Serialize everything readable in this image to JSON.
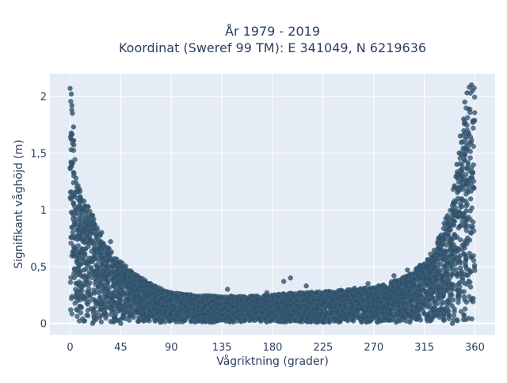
{
  "chart_data": {
    "type": "scatter",
    "title_line1": "År 1979 - 2019",
    "title_line2": "Koordinat (Sweref 99 TM): E 341049, N 6219636",
    "xlabel": "Vågriktning (grader)",
    "ylabel": "Signifikant våghöjd (m)",
    "xlim": [
      -18,
      378
    ],
    "ylim": [
      -0.1,
      2.2
    ],
    "xticks": [
      0,
      45,
      90,
      135,
      180,
      225,
      270,
      315,
      360
    ],
    "xtick_labels": [
      "0",
      "45",
      "90",
      "135",
      "180",
      "225",
      "270",
      "315",
      "360"
    ],
    "yticks": [
      0,
      0.5,
      1,
      1.5,
      2
    ],
    "ytick_labels": [
      "0",
      "0,5",
      "1",
      "1,5",
      "2"
    ],
    "grid": true,
    "colors": {
      "marker": "#2e5068",
      "plot_bg": "#e5ecf6",
      "grid": "#ffffff",
      "text": "#2a3f5f"
    },
    "envelope": {
      "x": [
        0,
        2,
        5,
        10,
        15,
        20,
        30,
        40,
        50,
        60,
        70,
        80,
        90,
        110,
        135,
        160,
        180,
        200,
        225,
        250,
        270,
        290,
        300,
        310,
        320,
        330,
        340,
        345,
        350,
        355,
        360
      ],
      "y_max": [
        2.05,
        1.85,
        1.4,
        1.1,
        1.05,
        0.95,
        0.72,
        0.6,
        0.5,
        0.42,
        0.36,
        0.31,
        0.27,
        0.25,
        0.24,
        0.24,
        0.25,
        0.27,
        0.28,
        0.3,
        0.32,
        0.38,
        0.42,
        0.5,
        0.6,
        0.8,
        1.15,
        1.4,
        1.75,
        2.08,
        2.1
      ]
    },
    "points": [
      [
        0,
        2.07
      ],
      [
        1,
        2.02
      ],
      [
        1.5,
        1.92
      ],
      [
        2,
        1.85
      ],
      [
        3,
        1.73
      ],
      [
        1,
        1.62
      ],
      [
        6,
        1.2
      ],
      [
        10,
        1.09
      ],
      [
        20,
        0.95
      ],
      [
        28,
        0.8
      ],
      [
        36,
        0.72
      ],
      [
        55,
        0.45
      ],
      [
        62,
        0.37
      ],
      [
        95,
        0.24
      ],
      [
        140,
        0.3
      ],
      [
        175,
        0.27
      ],
      [
        190,
        0.37
      ],
      [
        196,
        0.4
      ],
      [
        210,
        0.33
      ],
      [
        253,
        0.31
      ],
      [
        265,
        0.35
      ],
      [
        288,
        0.42
      ],
      [
        300,
        0.47
      ],
      [
        309,
        0.42
      ],
      [
        324,
        0.55
      ],
      [
        336,
        0.78
      ],
      [
        340,
        1.0
      ],
      [
        342,
        1.2
      ],
      [
        344,
        1.4
      ],
      [
        346,
        1.5
      ],
      [
        347,
        1.65
      ],
      [
        350,
        1.8
      ],
      [
        351,
        1.95
      ],
      [
        353,
        2.03
      ],
      [
        355,
        2.08
      ],
      [
        357,
        2.1
      ],
      [
        358,
        2.05
      ],
      [
        178,
        0.02
      ],
      [
        225,
        0.01
      ],
      [
        200,
        0.03
      ],
      [
        130,
        0.02
      ],
      [
        80,
        0.01
      ],
      [
        290,
        0.01
      ],
      [
        45,
        0.0
      ],
      [
        20,
        0.0
      ],
      [
        340,
        0.0
      ]
    ]
  }
}
